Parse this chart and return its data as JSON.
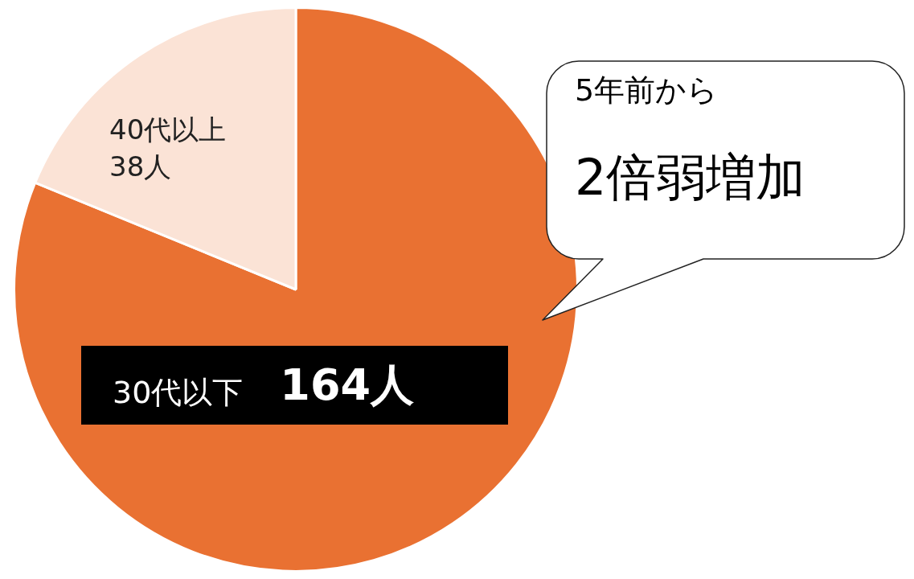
{
  "chart_data": {
    "type": "pie",
    "categories": [
      "30代以下",
      "40代以上"
    ],
    "values": [
      164,
      38
    ],
    "colors": [
      "#e97132",
      "#fbe3d6"
    ],
    "value_labels": [
      "164人",
      "38人"
    ],
    "legend": false,
    "annotations": [
      "5年前から",
      "2倍弱増加"
    ]
  }
}
